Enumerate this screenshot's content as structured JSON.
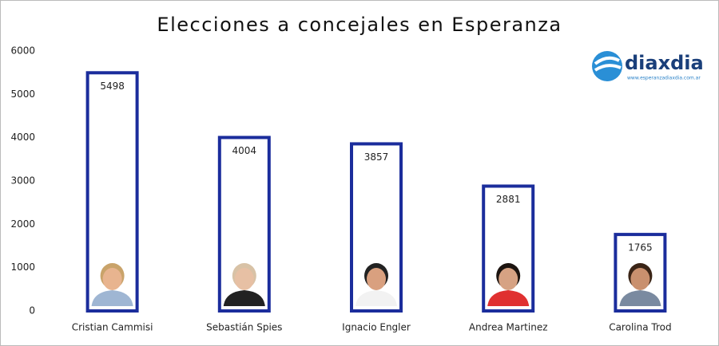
{
  "chart_data": {
    "type": "bar",
    "title": "Elecciones a concejales en Esperanza",
    "categories": [
      "Cristian Cammisi",
      "Sebastián Spies",
      "Ignacio Engler",
      "Andrea Martinez",
      "Carolina Trod"
    ],
    "values": [
      5498,
      4004,
      3857,
      2881,
      1765
    ],
    "color": "#1b2d9c",
    "ylim": [
      0,
      6000
    ],
    "yticks": [
      0,
      1000,
      2000,
      3000,
      4000,
      5000,
      6000
    ],
    "grid": false,
    "logo": "diaxdia",
    "logo_url": "www.esperanzadiaxdia.com.ar"
  }
}
